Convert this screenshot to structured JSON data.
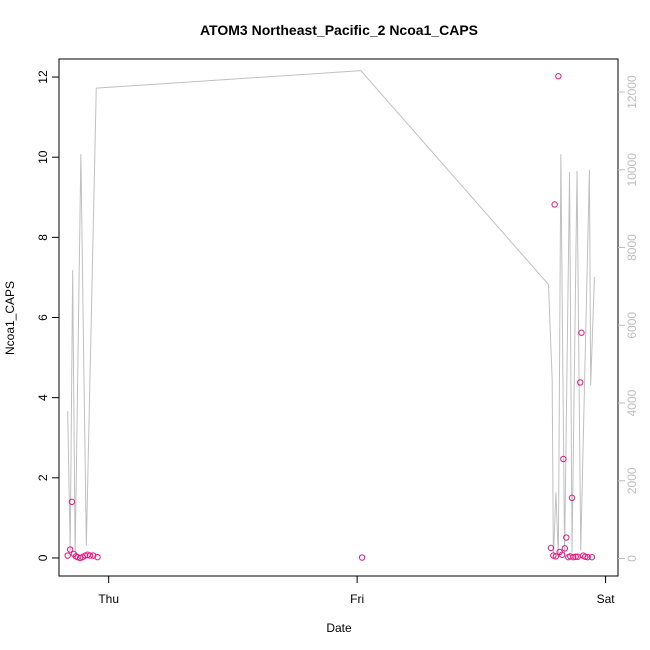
{
  "chart_data": {
    "type": "scatter",
    "title": "ATOM3 Northeast_Pacific_2 Ncoa1_CAPS",
    "xlabel": "Date",
    "ylabel": "Ncoa1_CAPS",
    "x_ticks": [
      {
        "label": "Thu",
        "x": 0.0
      },
      {
        "label": "Fri",
        "x": 1.0
      },
      {
        "label": "Sat",
        "x": 2.0
      }
    ],
    "xlim": [
      -0.2,
      2.05
    ],
    "ylim": [
      -0.45,
      12.45
    ],
    "y_ticks": [
      0,
      2,
      4,
      6,
      8,
      10,
      12
    ],
    "y2lim": [
      -450,
      12850
    ],
    "y2_ticks": [
      0,
      2000,
      4000,
      6000,
      8000,
      10000,
      12000
    ],
    "grid": false,
    "colors": {
      "points": "#e8187d",
      "line": "#c0c0c0",
      "right_axis": "#bebebe"
    },
    "series": [
      {
        "kind": "points",
        "axis": "left",
        "points": [
          [
            -0.165,
            0.06
          ],
          [
            -0.155,
            0.21
          ],
          [
            -0.148,
            1.4
          ],
          [
            -0.14,
            0.1
          ],
          [
            -0.132,
            0.04
          ],
          [
            -0.125,
            0.02
          ],
          [
            -0.115,
            0.0
          ],
          [
            -0.105,
            0.02
          ],
          [
            -0.095,
            0.06
          ],
          [
            -0.085,
            0.08
          ],
          [
            -0.075,
            0.06
          ],
          [
            -0.062,
            0.06
          ],
          [
            -0.045,
            0.02
          ],
          [
            1.02,
            0.01
          ],
          [
            1.78,
            0.25
          ],
          [
            1.79,
            0.06
          ],
          [
            1.795,
            8.82
          ],
          [
            1.8,
            0.04
          ],
          [
            1.81,
            12.02
          ],
          [
            1.815,
            0.15
          ],
          [
            1.825,
            0.08
          ],
          [
            1.83,
            2.47
          ],
          [
            1.836,
            0.24
          ],
          [
            1.842,
            0.51
          ],
          [
            1.85,
            0.02
          ],
          [
            1.858,
            0.04
          ],
          [
            1.865,
            1.5
          ],
          [
            1.87,
            0.02
          ],
          [
            1.88,
            0.03
          ],
          [
            1.888,
            0.03
          ],
          [
            1.898,
            4.38
          ],
          [
            1.903,
            5.62
          ],
          [
            1.91,
            0.06
          ],
          [
            1.918,
            0.03
          ],
          [
            1.928,
            0.02
          ],
          [
            1.945,
            0.02
          ]
        ]
      },
      {
        "kind": "line",
        "axis": "right",
        "points": [
          [
            -0.165,
            3790
          ],
          [
            -0.155,
            200
          ],
          [
            -0.145,
            7420
          ],
          [
            -0.135,
            50
          ],
          [
            -0.112,
            10400
          ],
          [
            -0.09,
            330
          ],
          [
            -0.05,
            12100
          ],
          [
            1.015,
            12550
          ],
          [
            1.77,
            7050
          ],
          [
            1.785,
            4600
          ],
          [
            1.79,
            0
          ],
          [
            1.8,
            1700
          ],
          [
            1.81,
            50
          ],
          [
            1.82,
            10400
          ],
          [
            1.835,
            100
          ],
          [
            1.855,
            9940
          ],
          [
            1.865,
            150
          ],
          [
            1.885,
            9970
          ],
          [
            1.9,
            200
          ],
          [
            1.935,
            10000
          ],
          [
            1.94,
            4450
          ],
          [
            1.955,
            7240
          ]
        ]
      }
    ]
  }
}
